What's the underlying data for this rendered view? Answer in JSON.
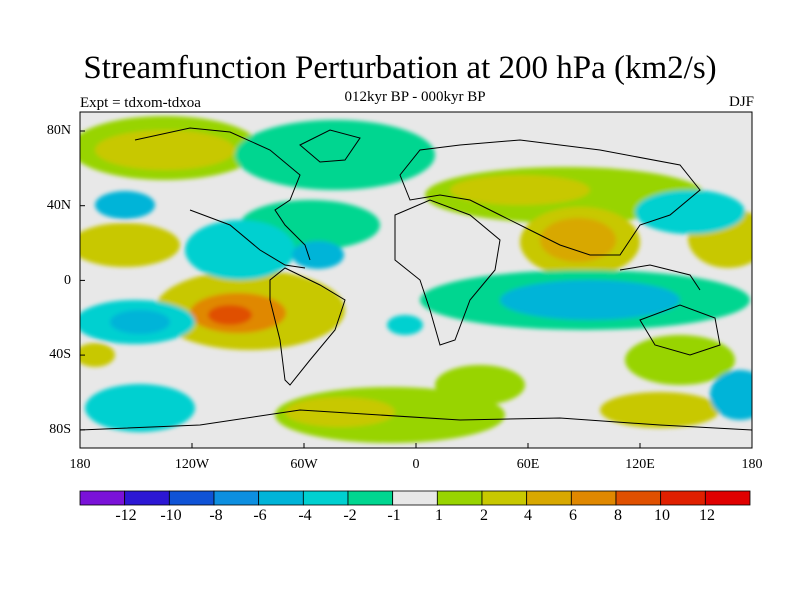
{
  "header": {
    "title": "Streamfunction Perturbation at 200 hPa (km2/s)",
    "subtitle": "012kyr BP - 000kyr BP",
    "experiment": "Expt = tdxom-tdxoa",
    "season": "DJF"
  },
  "axes": {
    "x_ticks": [
      "180",
      "120W",
      "60W",
      "0",
      "60E",
      "120E",
      "180"
    ],
    "y_ticks": [
      "80N",
      "40N",
      "0",
      "40S",
      "80S"
    ]
  },
  "colorbar": {
    "labels": [
      "-12",
      "-10",
      "-8",
      "-6",
      "-4",
      "-2",
      "-1",
      "1",
      "2",
      "4",
      "6",
      "8",
      "10",
      "12"
    ],
    "colors": [
      "#7a12d8",
      "#2c17d4",
      "#0f53d6",
      "#0d8fe0",
      "#00b4d8",
      "#00d0d0",
      "#00d690",
      "#e8e8e8",
      "#98d400",
      "#c8c800",
      "#d8a800",
      "#e08800",
      "#e05000",
      "#e02000",
      "#e00000"
    ]
  },
  "map": {
    "background_color": "#e8e8e8",
    "frame_color": "#000000",
    "projection": "cylindrical-equidistant",
    "longitude_range": [
      -180,
      180
    ],
    "latitude_range": [
      -90,
      90
    ]
  }
}
